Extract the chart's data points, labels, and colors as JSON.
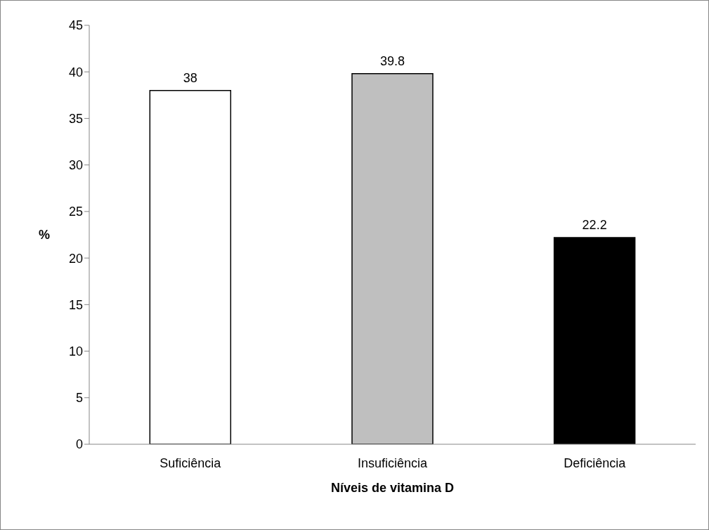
{
  "chart_data": {
    "type": "bar",
    "xlabel": "Níveis de vitamina D",
    "ylabel": "%",
    "categories": [
      "Suficiência",
      "Insuficiência",
      "Deficiência"
    ],
    "values": [
      38,
      39.8,
      22.2
    ],
    "colors": [
      "#ffffff",
      "#bfbfbf",
      "#000000"
    ],
    "ylim": [
      0,
      45
    ],
    "yticks": [
      0,
      5,
      10,
      15,
      20,
      25,
      30,
      35,
      40,
      45
    ],
    "data_labels": true
  }
}
